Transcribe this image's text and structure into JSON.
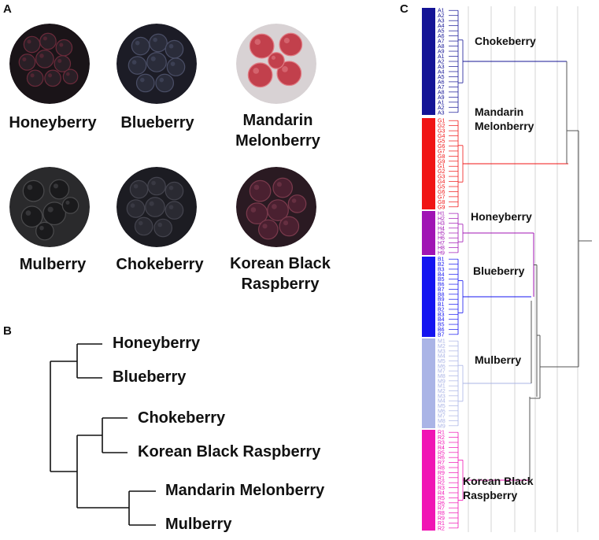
{
  "panels": {
    "a": "A",
    "b": "B",
    "c": "C"
  },
  "panel_a": {
    "items": [
      {
        "label": "Honeyberry",
        "icon": "honeyberry-photo",
        "bg": "#1a1418",
        "fruit": "#2a1f26",
        "accent": "#6a2a3a"
      },
      {
        "label": "Blueberry",
        "icon": "blueberry-photo",
        "bg": "#1c1c26",
        "fruit": "#2a2c3a",
        "accent": "#4a4e66"
      },
      {
        "label": "Mandarin\nMelonberry",
        "icon": "mandarin-melonberry-photo",
        "bg": "#d8d2d4",
        "fruit": "#c2404c",
        "accent": "#e07c84"
      },
      {
        "label": "Mulberry",
        "icon": "mulberry-photo",
        "bg": "#2a2a2c",
        "fruit": "#1a1a1c",
        "accent": "#4a4a4c"
      },
      {
        "label": "Chokeberry",
        "icon": "chokeberry-photo",
        "bg": "#1c1c22",
        "fruit": "#2a2a32",
        "accent": "#44444e"
      },
      {
        "label": "Korean Black\nRaspberry",
        "icon": "korean-black-raspberry-photo",
        "bg": "#2a1a22",
        "fruit": "#4a2030",
        "accent": "#7a3a4c"
      }
    ]
  },
  "panel_b": {
    "leaves": [
      "Honeyberry",
      "Blueberry",
      "Chokeberry",
      "Korean Black Raspberry",
      "Mandarin Melonberry",
      "Mulberry"
    ]
  },
  "panel_c": {
    "clusters": [
      {
        "label": "Chokeberry",
        "code": "A",
        "color": "#141496"
      },
      {
        "label": "Mandarin\nMelonberry",
        "code": "G",
        "color": "#f01414"
      },
      {
        "label": "Honeyberry",
        "code": "H",
        "color": "#a014b4"
      },
      {
        "label": "Blueberry",
        "code": "B",
        "color": "#1414f0"
      },
      {
        "label": "Mulberry",
        "code": "M",
        "color": "#aab4e6"
      },
      {
        "label": "Korean Black\nRaspberry",
        "code": "R",
        "color": "#f014b4"
      }
    ]
  }
}
